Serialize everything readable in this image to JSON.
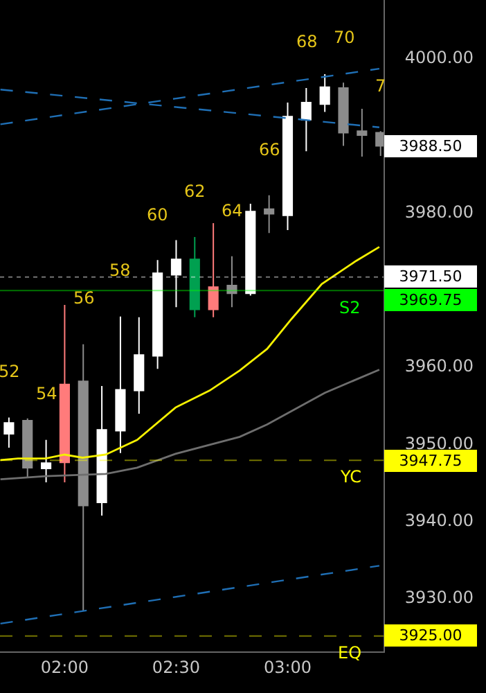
{
  "chart_data": {
    "type": "candlestick",
    "x": [
      1.75,
      1.8333,
      1.9167,
      2.0,
      2.0833,
      2.1667,
      2.25,
      2.3333,
      2.4167,
      2.5,
      2.5833,
      2.6667,
      2.75,
      2.8333,
      2.9167,
      3.0,
      3.0833,
      3.1667,
      3.25,
      3.3333,
      3.4167
    ],
    "ohlc": [
      [
        3951.2,
        3953.3,
        3949.4,
        3952.6
      ],
      [
        3952.9,
        3953.2,
        3945.6,
        3946.8
      ],
      [
        3946.7,
        3950.4,
        3944.9,
        3947.4
      ],
      [
        3957.6,
        3967.9,
        3944.9,
        3947.5
      ],
      [
        3958.0,
        3962.8,
        3928.3,
        3941.9
      ],
      [
        3942.3,
        3957.4,
        3940.6,
        3951.7
      ],
      [
        3951.6,
        3966.4,
        3948.7,
        3956.9
      ],
      [
        3956.8,
        3966.3,
        3953.8,
        3961.4
      ],
      [
        3961.3,
        3973.7,
        3959.6,
        3972.0
      ],
      [
        3971.8,
        3976.3,
        3967.6,
        3973.8
      ],
      [
        3967.3,
        3976.7,
        3966.3,
        3973.8
      ],
      [
        3970.2,
        3978.5,
        3966.3,
        3967.3
      ],
      [
        3970.4,
        3974.2,
        3967.6,
        3969.4
      ],
      [
        3969.4,
        3981.0,
        3969.1,
        3980.0
      ],
      [
        3980.3,
        3982.1,
        3977.2,
        3979.7
      ],
      [
        3979.5,
        3994.1,
        3977.6,
        3992.3
      ],
      [
        3991.9,
        3996.0,
        3987.8,
        3994.1
      ],
      [
        3993.9,
        3997.8,
        3992.9,
        3996.1
      ],
      [
        3996.0,
        3996.7,
        3988.5,
        3990.2
      ],
      [
        3990.4,
        3993.3,
        3987.1,
        3989.9
      ],
      [
        3990.2,
        3990.4,
        3987.2,
        3988.5
      ]
    ],
    "colors": [
      "#ffffff",
      "#8c8c8c",
      "#ffffff",
      "#ff7b7b",
      "#8c8c8c",
      "#ffffff",
      "#ffffff",
      "#ffffff",
      "#ffffff",
      "#ffffff",
      "#00a050",
      "#ff7b7b",
      "#8c8c8c",
      "#ffffff",
      "#8c8c8c",
      "#ffffff",
      "#ffffff",
      "#ffffff",
      "#8c8c8c",
      "#8c8c8c",
      "#8c8c8c"
    ],
    "series": [
      {
        "type": "line",
        "color": "#f5f000",
        "line_style": "solid",
        "x": [
          1.712,
          1.791,
          1.914,
          2.0,
          2.08,
          2.184,
          2.325,
          2.497,
          2.65,
          2.785,
          2.908,
          3.018,
          3.153,
          3.307,
          3.411
        ],
        "values": [
          3947.8,
          3948.0,
          3948.0,
          3948.5,
          3948.1,
          3948.5,
          3950.4,
          3954.6,
          3956.8,
          3959.4,
          3962.2,
          3966.1,
          3970.6,
          3973.6,
          3975.4
        ]
      },
      {
        "type": "line",
        "color": "#6e6e6e",
        "line_style": "solid",
        "x": [
          1.712,
          1.914,
          2.184,
          2.325,
          2.497,
          2.785,
          2.908,
          3.166,
          3.411
        ],
        "values": [
          3945.3,
          3945.7,
          3946.0,
          3946.8,
          3948.6,
          3950.8,
          3952.4,
          3956.5,
          3959.5
        ]
      },
      {
        "type": "line",
        "color": "#1f6fb5",
        "line_style": "dashed",
        "x": [
          1.712,
          3.411
        ],
        "values": [
          3991.3,
          3998.5
        ]
      },
      {
        "type": "line",
        "color": "#1f6fb5",
        "line_style": "dashed",
        "x": [
          1.712,
          3.411
        ],
        "values": [
          3995.8,
          3990.9
        ]
      },
      {
        "type": "line",
        "color": "#1f6fb5",
        "line_style": "dashed",
        "x": [
          1.712,
          3.411
        ],
        "values": [
          3926.6,
          3934.1
        ]
      }
    ],
    "xlim": [
      1.71,
      3.43
    ],
    "xticks": [
      {
        "value": 2,
        "label": "02:00"
      },
      {
        "value": 2.5,
        "label": "02:30"
      },
      {
        "value": 3,
        "label": "03:00"
      }
    ],
    "ylim": [
      3923.0,
      4007.4
    ],
    "yticks": [
      {
        "value": 3930,
        "label": "3930.00"
      },
      {
        "value": 3940,
        "label": "3940.00"
      },
      {
        "value": 3950,
        "label": "3950.00"
      },
      {
        "value": 3960,
        "label": "3960.00"
      },
      {
        "value": 3980,
        "label": "3980.00"
      },
      {
        "value": 3990,
        "label": null
      },
      {
        "value": 4000,
        "label": "4000.00"
      }
    ],
    "ref_lines": [
      {
        "axis": "y",
        "value": 3971.5,
        "label": "3971.50",
        "color": "#ffffff",
        "line_style": "dotted"
      },
      {
        "axis": "y",
        "value": 3969.75,
        "label": "3969.75",
        "color": "#00ff00",
        "line_style": "solid"
      },
      {
        "axis": "y",
        "value": 3947.75,
        "label": "3947.75",
        "color": "#ffff00",
        "line_style": "dashed"
      },
      {
        "axis": "y",
        "value": 3925.0,
        "label": "3925.00",
        "color": "#ffff00",
        "line_style": "dashed"
      }
    ],
    "annotations": [
      {
        "text": "52",
        "x": 1.75,
        "y": 3953.3
      },
      {
        "text": "54",
        "x": 1.9167,
        "y": 3950.4
      },
      {
        "text": "56",
        "x": 2.0833,
        "y": 3962.8
      },
      {
        "text": "58",
        "x": 2.25,
        "y": 3966.4
      },
      {
        "text": "60",
        "x": 2.4167,
        "y": 3973.7
      },
      {
        "text": "62",
        "x": 2.5833,
        "y": 3976.7
      },
      {
        "text": "64",
        "x": 2.75,
        "y": 3974.2
      },
      {
        "text": "66",
        "x": 2.9167,
        "y": 3982.1
      },
      {
        "text": "68",
        "x": 3.0833,
        "y": 3996.0
      },
      {
        "text": "70",
        "x": 3.25,
        "y": 3996.7
      },
      {
        "text": "7",
        "x": 3.4167,
        "y": 3990.4
      },
      {
        "text": "3988.50",
        "x": 3.4167,
        "y": 3988.5
      },
      {
        "text": "S2",
        "x": 3.28,
        "y": 3969.75
      },
      {
        "text": "YC",
        "x": 3.28,
        "y": 3947.75
      },
      {
        "text": "EQ",
        "x": 3.28,
        "y": 3925.0
      }
    ]
  }
}
